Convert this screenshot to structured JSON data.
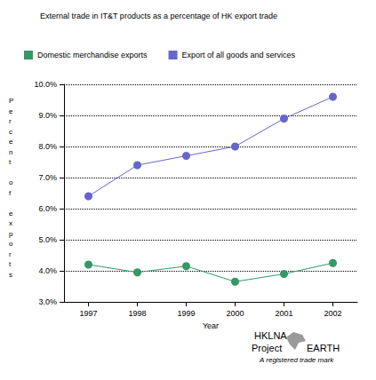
{
  "chart_data": {
    "type": "line",
    "title": "External trade in IT&T products as a percentage of HK export trade",
    "x_label": "Year",
    "y_label": "Percent of exports",
    "categories": [
      "1997",
      "1998",
      "1999",
      "2000",
      "2001",
      "2002"
    ],
    "series": [
      {
        "name": "Domestic merchandise exports",
        "color": "#339966",
        "marker": "circle",
        "line_style": "solid",
        "values": [
          4.2,
          3.95,
          4.15,
          3.65,
          3.9,
          4.25
        ]
      },
      {
        "name": "Export of all goods and services",
        "color": "#6666cc",
        "marker": "circle",
        "line_style": "solid",
        "values": [
          6.4,
          7.4,
          7.7,
          8.0,
          8.9,
          9.6
        ]
      }
    ],
    "ylim": [
      3,
      10
    ],
    "yticks": [
      {
        "value": 3,
        "label": "3.0%"
      },
      {
        "value": 4,
        "label": "4.0%"
      },
      {
        "value": 5,
        "label": "5.0%"
      },
      {
        "value": 6,
        "label": "6.0%"
      },
      {
        "value": 7,
        "label": "7.0%"
      },
      {
        "value": 8,
        "label": "8.0%"
      },
      {
        "value": 9,
        "label": "9.0%"
      },
      {
        "value": 10,
        "label": "10.0%"
      }
    ],
    "grid": true,
    "legend": "top",
    "annotations": [
      "HKLNA",
      "Project",
      "EARTH",
      "A registered trade mark"
    ]
  }
}
